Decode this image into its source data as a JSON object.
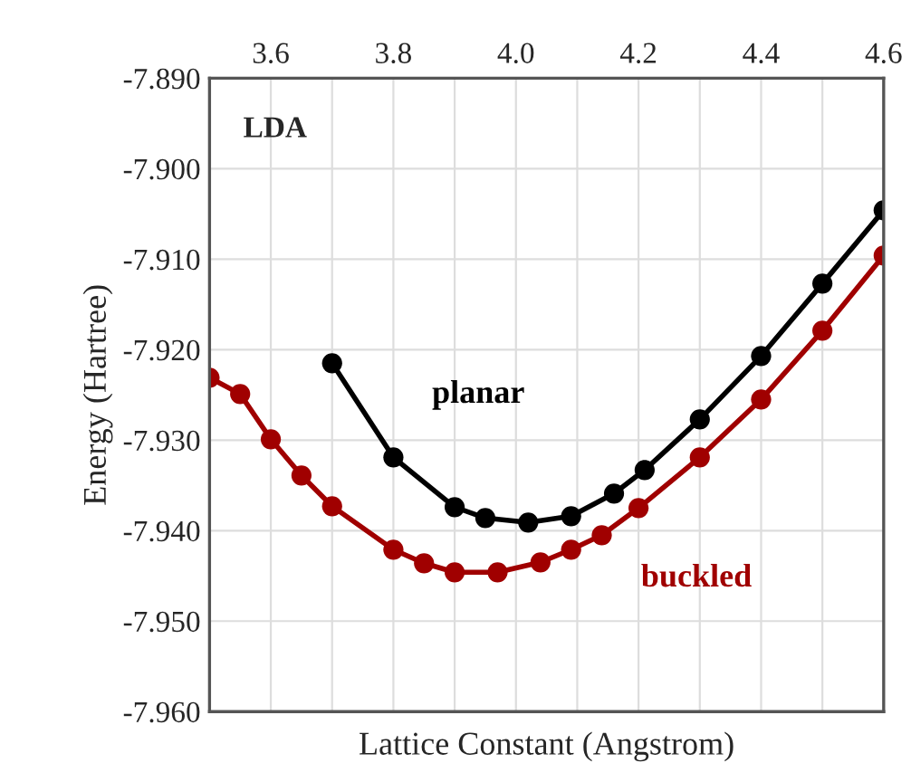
{
  "chart_data": {
    "type": "line",
    "xlabel": "Lattice Constant (Angstrom)",
    "ylabel": "Energy (Hartree)",
    "annotations": [
      "LDA"
    ],
    "xlim": [
      3.5,
      4.6
    ],
    "xticks": [
      {
        "value": 3.5,
        "label": null
      },
      3.6,
      {
        "value": 3.7,
        "label": null
      },
      3.8,
      {
        "value": 3.9,
        "label": null
      },
      {
        "value": 4.0,
        "label": "4.0"
      },
      {
        "value": 4.1,
        "label": null
      },
      4.2,
      {
        "value": 4.3,
        "label": null
      },
      4.4,
      {
        "value": 4.5,
        "label": null
      },
      4.6
    ],
    "ylim": [
      -7.96,
      -7.89
    ],
    "yticks": [
      {
        "value": -7.96,
        "label": "-7.960"
      },
      {
        "value": -7.95,
        "label": "-7.950"
      },
      {
        "value": -7.94,
        "label": "-7.940"
      },
      {
        "value": -7.93,
        "label": "-7.930"
      },
      {
        "value": -7.92,
        "label": "-7.920"
      },
      {
        "value": -7.91,
        "label": "-7.910"
      },
      {
        "value": -7.9,
        "label": "-7.900"
      },
      {
        "value": -7.89,
        "label": "-7.890"
      }
    ],
    "grid": true,
    "legend": false,
    "marker": "circle",
    "line_style": "solid",
    "series": [
      {
        "name": "planar",
        "color": "#000000",
        "x": [
          3.7,
          3.8,
          3.9,
          3.95,
          4.02,
          4.09,
          4.16,
          4.21,
          4.3,
          4.4,
          4.5,
          4.6
        ],
        "values": [
          -7.9215,
          -7.9319,
          -7.9374,
          -7.9386,
          -7.9391,
          -7.9384,
          -7.9359,
          -7.9333,
          -7.9277,
          -7.9207,
          -7.9127,
          -7.9046
        ]
      },
      {
        "name": "buckled",
        "color": "#a00000",
        "x": [
          3.5,
          3.55,
          3.6,
          3.65,
          3.7,
          3.8,
          3.85,
          3.9,
          3.97,
          4.04,
          4.09,
          4.14,
          4.2,
          4.3,
          4.4,
          4.5,
          4.6
        ],
        "values": [
          -7.9231,
          -7.9249,
          -7.9299,
          -7.9339,
          -7.9373,
          -7.9421,
          -7.9436,
          -7.9446,
          -7.9446,
          -7.9435,
          -7.9421,
          -7.9405,
          -7.9375,
          -7.9319,
          -7.9255,
          -7.9179,
          -7.9096
        ]
      }
    ]
  }
}
